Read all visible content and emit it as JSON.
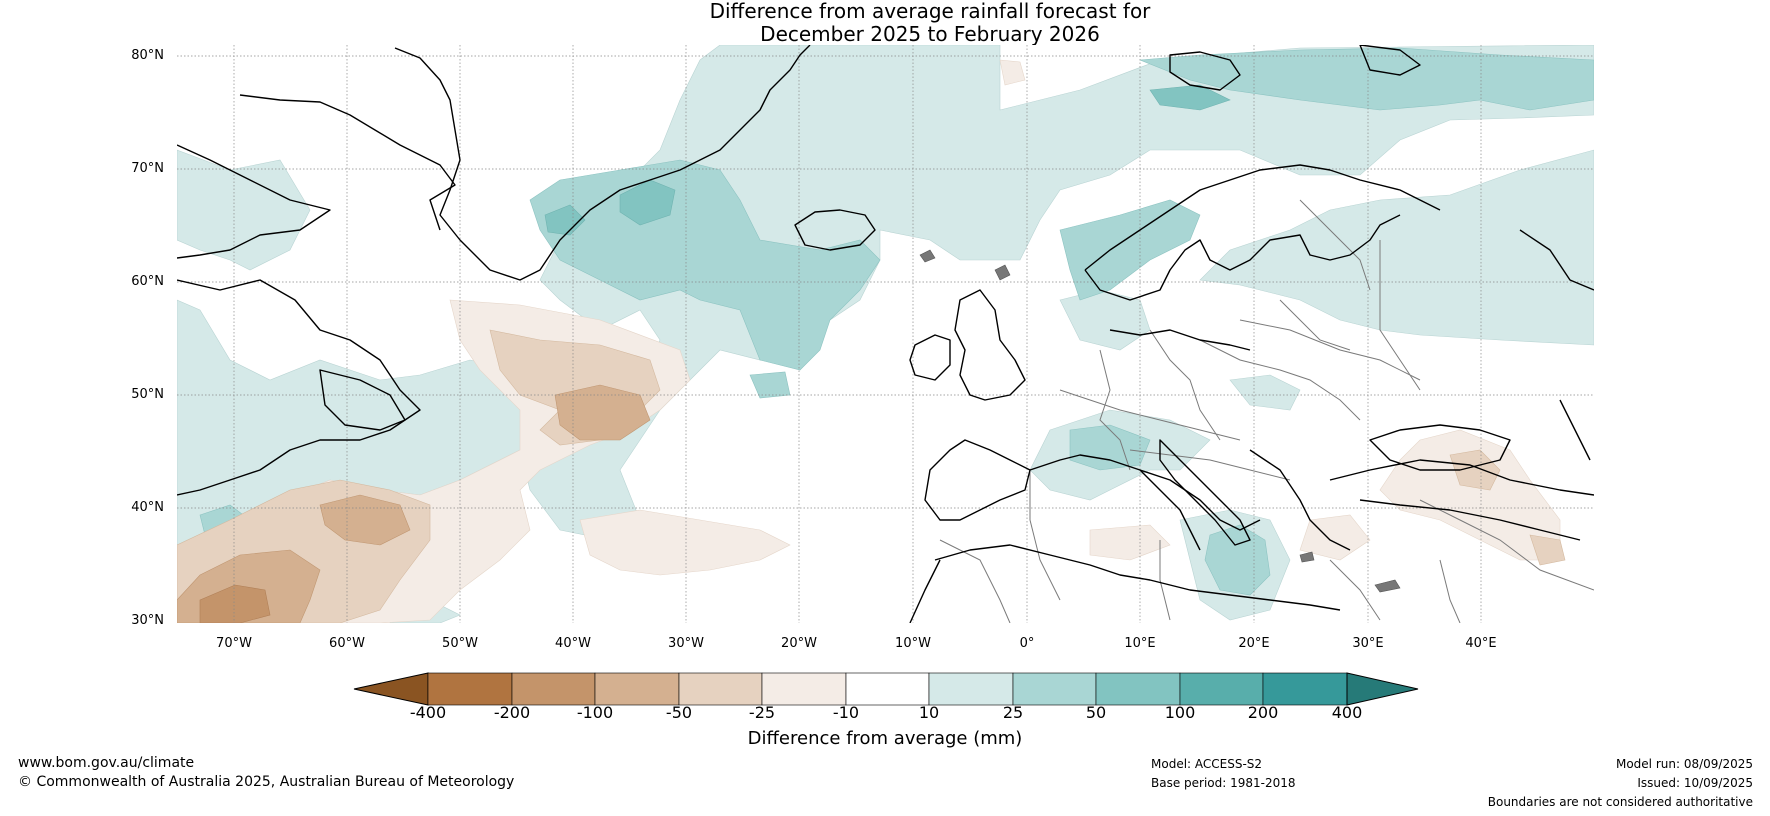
{
  "title": {
    "line1": "Difference from average rainfall forecast for",
    "line2": "December 2025 to February 2026"
  },
  "map": {
    "lat_labels": [
      "80°N",
      "70°N",
      "60°N",
      "50°N",
      "40°N",
      "30°N"
    ],
    "lon_labels": [
      "70°W",
      "60°W",
      "50°W",
      "40°W",
      "30°W",
      "20°W",
      "10°W",
      "0°",
      "10°E",
      "20°E",
      "30°E",
      "40°E"
    ],
    "gridlines": "dotted"
  },
  "colorbar": {
    "title": "Difference from average (mm)",
    "tick_labels": [
      "-400",
      "-200",
      "-100",
      "-50",
      "-25",
      "-10",
      "10",
      "25",
      "50",
      "100",
      "200",
      "400"
    ],
    "colors": {
      "below_-400": "#8a5422",
      "-400_-200": "#b07440",
      "-200_-100": "#c4946a",
      "-100_-50": "#d4b090",
      "-50_-25": "#e6d2c0",
      "-25_-10": "#f4ece6",
      "-10_10": "#ffffff",
      "10_25": "#d5e9e8",
      "25_50": "#a9d6d4",
      "50_100": "#82c4c1",
      "100_200": "#58aeab",
      "200_400": "#36999a",
      "above_400": "#267a78"
    }
  },
  "footer": {
    "website": "www.bom.gov.au/climate",
    "copyright": "© Commonwealth of Australia 2025, Australian Bureau of Meteorology",
    "model": "Model: ACCESS-S2",
    "base_period": "Base period: 1981-2018",
    "model_run": "Model run: 08/09/2025",
    "issued": "Issued: 10/09/2025",
    "disclaimer": "Boundaries are not considered authoritative"
  }
}
